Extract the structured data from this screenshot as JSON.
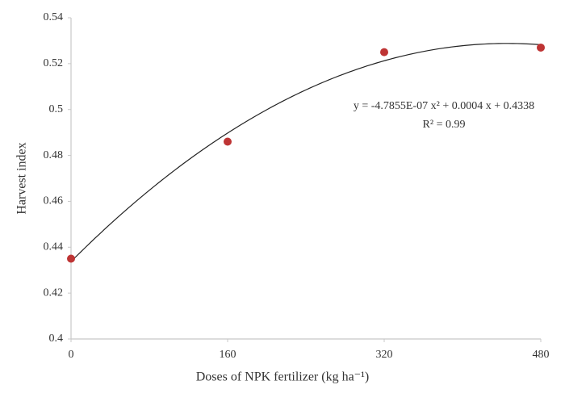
{
  "chart_data": {
    "type": "scatter",
    "x_label": "Doses of NPK fertilizer (kg ha⁻¹)",
    "y_label": "Harvest index",
    "annotations": [
      "y = -4.7855E-07 x² + 0.0004 x + 0.4338",
      "R² = 0.99"
    ],
    "x": [
      0,
      160,
      320,
      480
    ],
    "series": [
      {
        "color": "#be3434",
        "values": [
          0.435,
          0.486,
          0.525,
          0.527
        ]
      }
    ],
    "trendline": "polynomial",
    "xlim": [
      0,
      480
    ],
    "xticks": [
      0,
      160,
      320,
      480
    ],
    "ylim": [
      0.4,
      0.54
    ],
    "yticks": [
      0.4,
      0.42,
      0.44,
      0.46,
      0.48,
      0.5,
      0.52,
      0.54
    ],
    "grid": false
  }
}
